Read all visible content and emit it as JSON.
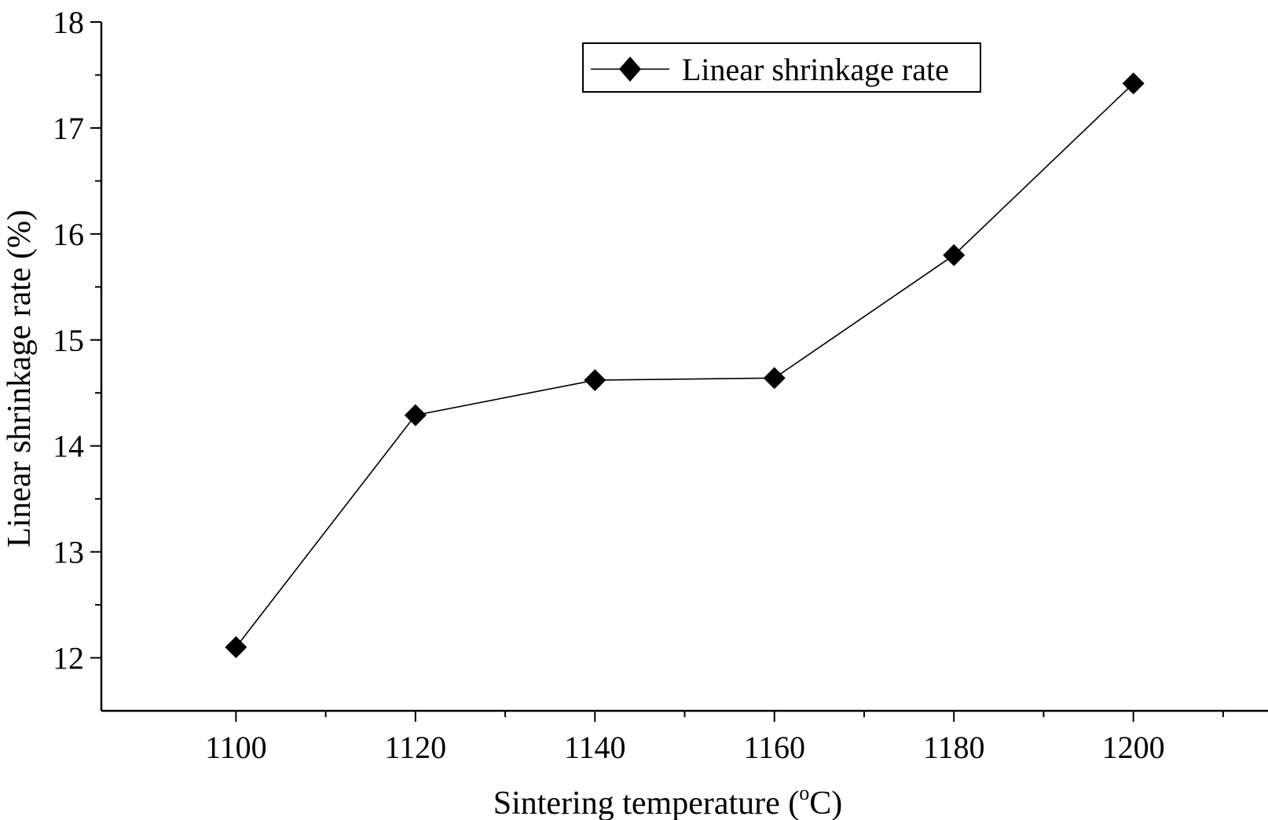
{
  "chart_data": {
    "type": "line",
    "title": "",
    "xlabel_main": "Sintering temperature (",
    "xlabel_sup": "o",
    "xlabel_end": "C)",
    "ylabel": "Linear shrinkage rate (%)",
    "xlim": [
      1085,
      1215
    ],
    "ylim": [
      11.5,
      18
    ],
    "x_ticks": [
      1100,
      1120,
      1140,
      1160,
      1180,
      1200
    ],
    "x_minor_ticks": [
      1110,
      1130,
      1150,
      1170,
      1190,
      1210
    ],
    "y_ticks": [
      12,
      13,
      14,
      15,
      16,
      17,
      18
    ],
    "y_minor_ticks": [
      12.5,
      13.5,
      14.5,
      15.5,
      16.5,
      17.5
    ],
    "grid": false,
    "legend_position": "top-right",
    "series": [
      {
        "name": "Linear shrinkage rate",
        "marker": "diamond",
        "color": "#000000",
        "x": [
          1100,
          1120,
          1140,
          1160,
          1180,
          1200
        ],
        "y": [
          12.1,
          14.29,
          14.62,
          14.64,
          15.8,
          17.42
        ]
      }
    ]
  }
}
